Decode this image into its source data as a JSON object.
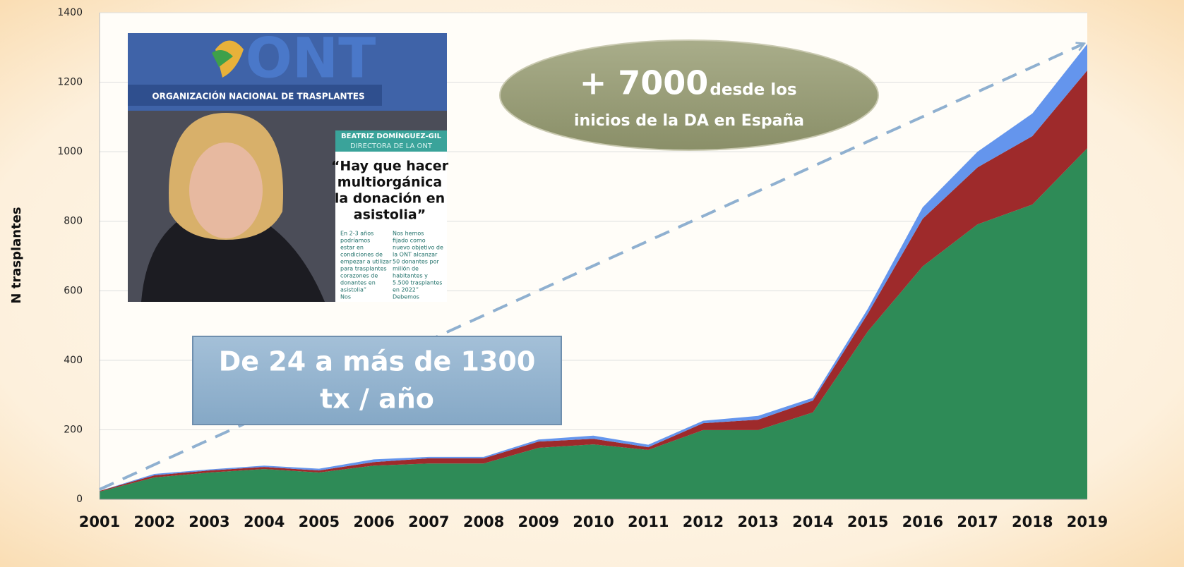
{
  "chart_data": {
    "type": "stacked-area",
    "ylabel": "N trasplantes",
    "x": [
      2001,
      2002,
      2003,
      2004,
      2005,
      2006,
      2007,
      2008,
      2009,
      2010,
      2011,
      2012,
      2013,
      2014,
      2015,
      2016,
      2017,
      2018,
      2019
    ],
    "xlim": [
      2001,
      2019
    ],
    "ylim": [
      0,
      1400
    ],
    "yticks": [
      0,
      200,
      400,
      600,
      800,
      1000,
      1200,
      1400
    ],
    "grid": true,
    "series": [
      {
        "color": "#2e8b57",
        "values": [
          22,
          63,
          77,
          87,
          77,
          97,
          103,
          103,
          148,
          158,
          142,
          199,
          199,
          250,
          483,
          670,
          791,
          848,
          1010
        ]
      },
      {
        "color": "#9e2a2b",
        "values": [
          2,
          6,
          6,
          6,
          6,
          10,
          15,
          15,
          18,
          16,
          8,
          20,
          30,
          34,
          51,
          137,
          164,
          197,
          224
        ]
      },
      {
        "color": "#6495ed",
        "values": [
          0,
          4,
          3,
          4,
          5,
          8,
          4,
          4,
          6,
          9,
          7,
          7,
          11,
          8,
          14,
          33,
          45,
          65,
          76
        ]
      }
    ],
    "annotations": {
      "ellipse": {
        "big": "+ 7000",
        "small": "desde los",
        "line2": "inicios de la DA en España"
      },
      "box": [
        "De 24 a más de 1300",
        "tx / año"
      ]
    },
    "inset": {
      "logo": "ONT",
      "organization": "ORGANIZACIÓN NACIONAL DE TRASPLANTES",
      "name": "BEATRIZ DOMÍNGUEZ-GIL",
      "role": "DIRECTORA DE LA ONT",
      "headline": [
        "“Hay que hacer",
        "multiorgánica",
        "la donación en",
        "asistolia”"
      ],
      "left_column": [
        "En 2-3 años",
        "podríamos",
        "estar en",
        "condiciones de",
        "empezar a utilizar",
        "para trasplantes",
        "corazones de",
        "donantes en",
        "asistolia”",
        "Nos"
      ],
      "right_column": [
        "Nos hemos",
        "fijado como",
        "nuevo objetivo de",
        "la ONT alcanzar",
        "50 donantes por",
        "millón de",
        "habitantes y",
        "5.500 trasplantes",
        "en 2022”",
        "Debemos"
      ]
    }
  }
}
